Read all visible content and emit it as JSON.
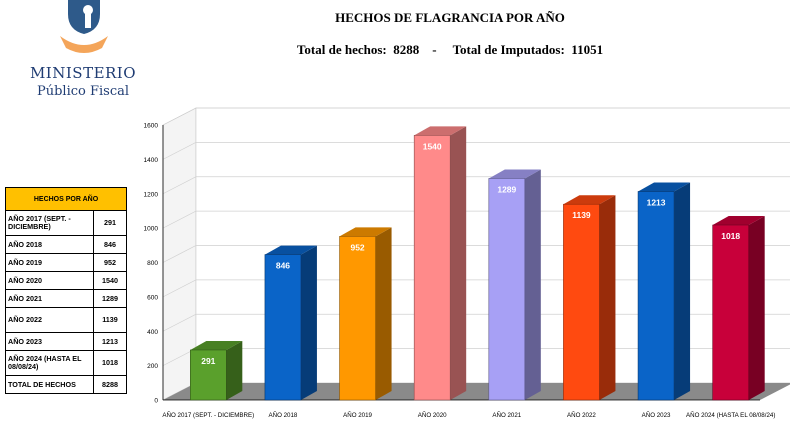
{
  "logo": {
    "line1": "MINISTERIO",
    "line2": "Público Fiscal"
  },
  "header": {
    "title": "HECHOS DE FLAGRANCIA POR AÑO",
    "subtitle": "Total de hechos:  8288    -     Total de Imputados:  11051"
  },
  "summary_table": {
    "header": "HECHOS POR AÑO",
    "rows": [
      {
        "label": "AÑO 2017 (SEPT. - DICIEMBRE)",
        "value": "291"
      },
      {
        "label": "AÑO 2018",
        "value": "846"
      },
      {
        "label": "AÑO 2019",
        "value": "952"
      },
      {
        "label": "AÑO 2020",
        "value": "1540"
      },
      {
        "label": "AÑO 2021",
        "value": "1289"
      },
      {
        "label": "AÑO 2022",
        "value": "1139"
      },
      {
        "label": "AÑO 2023",
        "value": "1213"
      },
      {
        "label": "AÑO 2024 (HASTA EL 08/08/24)",
        "value": "1018"
      },
      {
        "label": "TOTAL DE HECHOS",
        "value": "8288"
      }
    ]
  },
  "chart_data": {
    "type": "bar",
    "title": "",
    "xlabel": "",
    "ylabel": "",
    "ylim": [
      0,
      1600
    ],
    "yticks": [
      0,
      200,
      400,
      600,
      800,
      1000,
      1200,
      1400,
      1600
    ],
    "categories": [
      "AÑO 2017 (SEPT. - DICIEMBRE)",
      "AÑO 2018",
      "AÑO 2019",
      "AÑO 2020",
      "AÑO 2021",
      "AÑO 2022",
      "AÑO 2023",
      "AÑO 2024 (HASTA EL 08/08/24)"
    ],
    "values": [
      291,
      846,
      952,
      1540,
      1289,
      1139,
      1213,
      1018
    ],
    "colors": [
      "#5aa02c",
      "#0a64c8",
      "#ff9800",
      "#ff8a8a",
      "#a7a0f5",
      "#ff4a10",
      "#0a64c8",
      "#c8003a"
    ],
    "grid": true,
    "legend": "none",
    "style": "3d-bar"
  }
}
